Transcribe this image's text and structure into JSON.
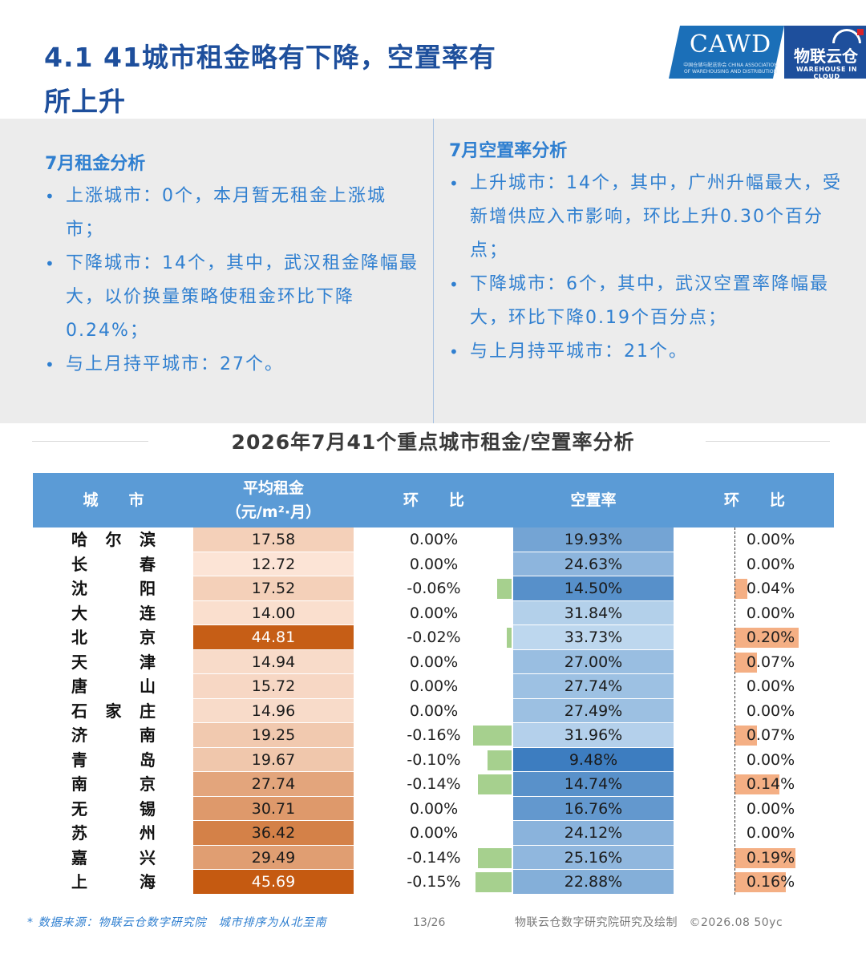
{
  "header": {
    "title_line1": "4.1 41城市租金略有下降，空置率有",
    "title_line2": "所上升"
  },
  "logo": {
    "cawd": "CAWD",
    "cawd_sub": "中国仓储与配送协会 CHINA ASSOCIATION OF WAREHOUSING AND DISTRIBUTION",
    "brand_cn": "物联云仓",
    "brand_en": "WAREHOUSE IN CLOUD"
  },
  "rent_analysis": {
    "heading": "7月租金分析",
    "bullets": [
      "上涨城市：0个，本月暂无租金上涨城市；",
      "下降城市：14个，其中，武汉租金降幅最大，以价换量策略使租金环比下降0.24%；",
      "与上月持平城市：27个。"
    ]
  },
  "vacancy_analysis": {
    "heading": "7月空置率分析",
    "bullets": [
      "上升城市：14个，其中，广州升幅最大，受新增供应入市影响，环比上升0.30个百分点；",
      "下降城市：6个，其中，武汉空置率降幅最大，环比下降0.19个百分点；",
      "与上月持平城市：21个。"
    ]
  },
  "table": {
    "title": "2026年7月41个重点城市租金/空置率分析",
    "headers": {
      "city": "城　　市",
      "rent": "平均租金",
      "rent_unit": "（元/m²·月）",
      "rent_change": "环　　比",
      "vacancy": "空置率",
      "vacancy_change": "环　　比"
    },
    "colors": {
      "header_bg": "#5b9bd6",
      "rent_bar": "#a6d08e",
      "vacancy_bar": "#f4af84"
    },
    "rows": [
      {
        "city": "哈尔滨",
        "rent": "17.58",
        "rent_change": "0.00%",
        "rent_change_value": 0.0,
        "vacancy": "19.93%",
        "vacancy_value": 19.93,
        "vacancy_change": "0.00%",
        "vacancy_change_value": 0.0
      },
      {
        "city": "长春",
        "rent": "12.72",
        "rent_change": "0.00%",
        "rent_change_value": 0.0,
        "vacancy": "24.63%",
        "vacancy_value": 24.63,
        "vacancy_change": "0.00%",
        "vacancy_change_value": 0.0
      },
      {
        "city": "沈阳",
        "rent": "17.52",
        "rent_change": "-0.06%",
        "rent_change_value": -0.06,
        "vacancy": "14.50%",
        "vacancy_value": 14.5,
        "vacancy_change": "0.04%",
        "vacancy_change_value": 0.04
      },
      {
        "city": "大连",
        "rent": "14.00",
        "rent_change": "0.00%",
        "rent_change_value": 0.0,
        "vacancy": "31.84%",
        "vacancy_value": 31.84,
        "vacancy_change": "0.00%",
        "vacancy_change_value": 0.0
      },
      {
        "city": "北京",
        "rent": "44.81",
        "rent_change": "-0.02%",
        "rent_change_value": -0.02,
        "vacancy": "33.73%",
        "vacancy_value": 33.73,
        "vacancy_change": "0.20%",
        "vacancy_change_value": 0.2
      },
      {
        "city": "天津",
        "rent": "14.94",
        "rent_change": "0.00%",
        "rent_change_value": 0.0,
        "vacancy": "27.00%",
        "vacancy_value": 27.0,
        "vacancy_change": "0.07%",
        "vacancy_change_value": 0.07
      },
      {
        "city": "唐山",
        "rent": "15.72",
        "rent_change": "0.00%",
        "rent_change_value": 0.0,
        "vacancy": "27.74%",
        "vacancy_value": 27.74,
        "vacancy_change": "0.00%",
        "vacancy_change_value": 0.0
      },
      {
        "city": "石家庄",
        "rent": "14.96",
        "rent_change": "0.00%",
        "rent_change_value": 0.0,
        "vacancy": "27.49%",
        "vacancy_value": 27.49,
        "vacancy_change": "0.00%",
        "vacancy_change_value": 0.0
      },
      {
        "city": "济南",
        "rent": "19.25",
        "rent_change": "-0.16%",
        "rent_change_value": -0.16,
        "vacancy": "31.96%",
        "vacancy_value": 31.96,
        "vacancy_change": "0.07%",
        "vacancy_change_value": 0.07
      },
      {
        "city": "青岛",
        "rent": "19.67",
        "rent_change": "-0.10%",
        "rent_change_value": -0.1,
        "vacancy": "9.48%",
        "vacancy_value": 9.48,
        "vacancy_change": "0.00%",
        "vacancy_change_value": 0.0
      },
      {
        "city": "南京",
        "rent": "27.74",
        "rent_change": "-0.14%",
        "rent_change_value": -0.14,
        "vacancy": "14.74%",
        "vacancy_value": 14.74,
        "vacancy_change": "0.14%",
        "vacancy_change_value": 0.14
      },
      {
        "city": "无锡",
        "rent": "30.71",
        "rent_change": "0.00%",
        "rent_change_value": 0.0,
        "vacancy": "16.76%",
        "vacancy_value": 16.76,
        "vacancy_change": "0.00%",
        "vacancy_change_value": 0.0
      },
      {
        "city": "苏州",
        "rent": "36.42",
        "rent_change": "0.00%",
        "rent_change_value": 0.0,
        "vacancy": "24.12%",
        "vacancy_value": 24.12,
        "vacancy_change": "0.00%",
        "vacancy_change_value": 0.0
      },
      {
        "city": "嘉兴",
        "rent": "29.49",
        "rent_change": "-0.14%",
        "rent_change_value": -0.14,
        "vacancy": "25.16%",
        "vacancy_value": 25.16,
        "vacancy_change": "0.19%",
        "vacancy_change_value": 0.19
      },
      {
        "city": "上海",
        "rent": "45.69",
        "rent_change": "-0.15%",
        "rent_change_value": -0.15,
        "vacancy": "22.88%",
        "vacancy_value": 22.88,
        "vacancy_change": "0.16%",
        "vacancy_change_value": 0.16
      }
    ]
  },
  "footer": {
    "source": "* 数据来源：物联云仓数字研究院　城市排序为从北至南",
    "page": "13/26",
    "credit": "物联云仓数字研究院研究及绘制　©2026.08 50yc"
  }
}
